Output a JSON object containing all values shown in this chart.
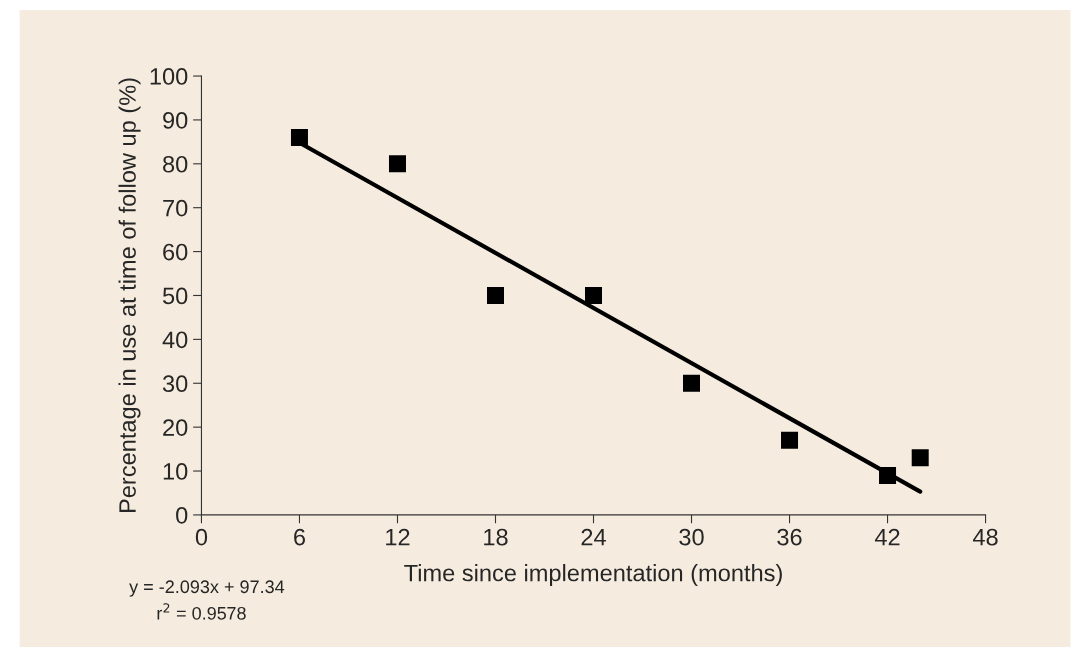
{
  "chart_data": {
    "type": "scatter",
    "xlabel": "Time since implementation (months)",
    "ylabel": "Percentage in use at time of follow up (%)",
    "x": [
      6,
      12,
      18,
      24,
      30,
      36,
      42,
      44
    ],
    "series": [
      {
        "color": "#000000",
        "marker": "square",
        "values": [
          86,
          80,
          50,
          50,
          30,
          17,
          9,
          13
        ]
      },
      {
        "type": "line",
        "color": "#000000",
        "line_style": "solid",
        "marker": "none",
        "x": [
          6,
          44
        ],
        "values": [
          84.8,
          5.3
        ]
      }
    ],
    "xlim": [
      0,
      48
    ],
    "xticks": [
      0,
      6,
      12,
      18,
      24,
      30,
      36,
      42,
      48
    ],
    "ylim": [
      0,
      100
    ],
    "yticks": [
      0,
      10,
      20,
      30,
      40,
      50,
      60,
      70,
      80,
      90,
      100
    ],
    "grid": false,
    "legend": false,
    "annotations": [
      "y = -2.093x + 97.34",
      "r$^{2}$ = 0.9578"
    ]
  }
}
